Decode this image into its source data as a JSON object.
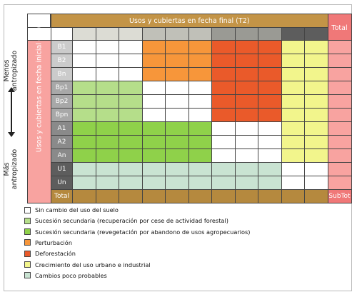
{
  "axes": {
    "top_title": "Usos y cubiertas en fecha final (T2)",
    "left_title": "Usos y cubiertas en fecha inicial (T1)",
    "total_right": "Total",
    "total_bottom": "Total",
    "subtotal": "SubTot",
    "menos_line1": "Menos",
    "menos_line2": "antropizado",
    "mas_line1": "Más",
    "mas_line2": "antropizado"
  },
  "categories": [
    "B1",
    "B2",
    "Bn",
    "Bp1",
    "Bp2",
    "Bpn",
    "A1",
    "A2",
    "An",
    "U1",
    "Un"
  ],
  "colors": {
    "title_bar": "#c39447",
    "total_bar": "#f07878",
    "bottom_row": "#b5893e",
    "pink_col": "#f8a3a0",
    "row_b": "#cbcbcb",
    "row_bp": "#a8a8a8",
    "row_a": "#8a8a8a",
    "row_u": "#5d5d5d",
    "col_headers": [
      "#dcdcd4",
      "#dcdcd4",
      "#dcdcd4",
      "#c0c0b8",
      "#c0c0b8",
      "#c0c0b8",
      "#9a9a94",
      "#9a9a94",
      "#9a9a94",
      "#5d5d5d",
      "#5d5d5d"
    ]
  },
  "legend": [
    {
      "key": "none",
      "color": "#ffffff",
      "label": "Sin cambio del uso del suelo"
    },
    {
      "key": "light_green",
      "color": "#b5de8a",
      "label": "Sucesión secundaria (recuperación por cese de actividad forestal)"
    },
    {
      "key": "green",
      "color": "#8fd14a",
      "label": "Sucesión secundaria (revegetación por abandono de usos agropecuarios)"
    },
    {
      "key": "orange",
      "color": "#f7963a",
      "label": "Perturbación"
    },
    {
      "key": "red",
      "color": "#ea5a2a",
      "label": "Deforestación"
    },
    {
      "key": "yellow",
      "color": "#f2f58c",
      "label": "Crecimiento del uso urbano e industrial"
    },
    {
      "key": "pale",
      "color": "#c9e3d2",
      "label": "Cambios poco probables"
    }
  ],
  "matrix": [
    [
      "none",
      "none",
      "none",
      "orange",
      "orange",
      "orange",
      "red",
      "red",
      "red",
      "yellow",
      "yellow"
    ],
    [
      "none",
      "none",
      "none",
      "orange",
      "orange",
      "orange",
      "red",
      "red",
      "red",
      "yellow",
      "yellow"
    ],
    [
      "none",
      "none",
      "none",
      "orange",
      "orange",
      "orange",
      "red",
      "red",
      "red",
      "yellow",
      "yellow"
    ],
    [
      "light_green",
      "light_green",
      "light_green",
      "none",
      "none",
      "none",
      "red",
      "red",
      "red",
      "yellow",
      "yellow"
    ],
    [
      "light_green",
      "light_green",
      "light_green",
      "none",
      "none",
      "none",
      "red",
      "red",
      "red",
      "yellow",
      "yellow"
    ],
    [
      "light_green",
      "light_green",
      "light_green",
      "none",
      "none",
      "none",
      "red",
      "red",
      "red",
      "yellow",
      "yellow"
    ],
    [
      "green",
      "green",
      "green",
      "green",
      "green",
      "green",
      "none",
      "none",
      "none",
      "yellow",
      "yellow"
    ],
    [
      "green",
      "green",
      "green",
      "green",
      "green",
      "green",
      "none",
      "none",
      "none",
      "yellow",
      "yellow"
    ],
    [
      "green",
      "green",
      "green",
      "green",
      "green",
      "green",
      "none",
      "none",
      "none",
      "yellow",
      "yellow"
    ],
    [
      "pale",
      "pale",
      "pale",
      "pale",
      "pale",
      "pale",
      "pale",
      "pale",
      "pale",
      "none",
      "none"
    ],
    [
      "pale",
      "pale",
      "pale",
      "pale",
      "pale",
      "pale",
      "pale",
      "pale",
      "pale",
      "none",
      "none"
    ]
  ]
}
